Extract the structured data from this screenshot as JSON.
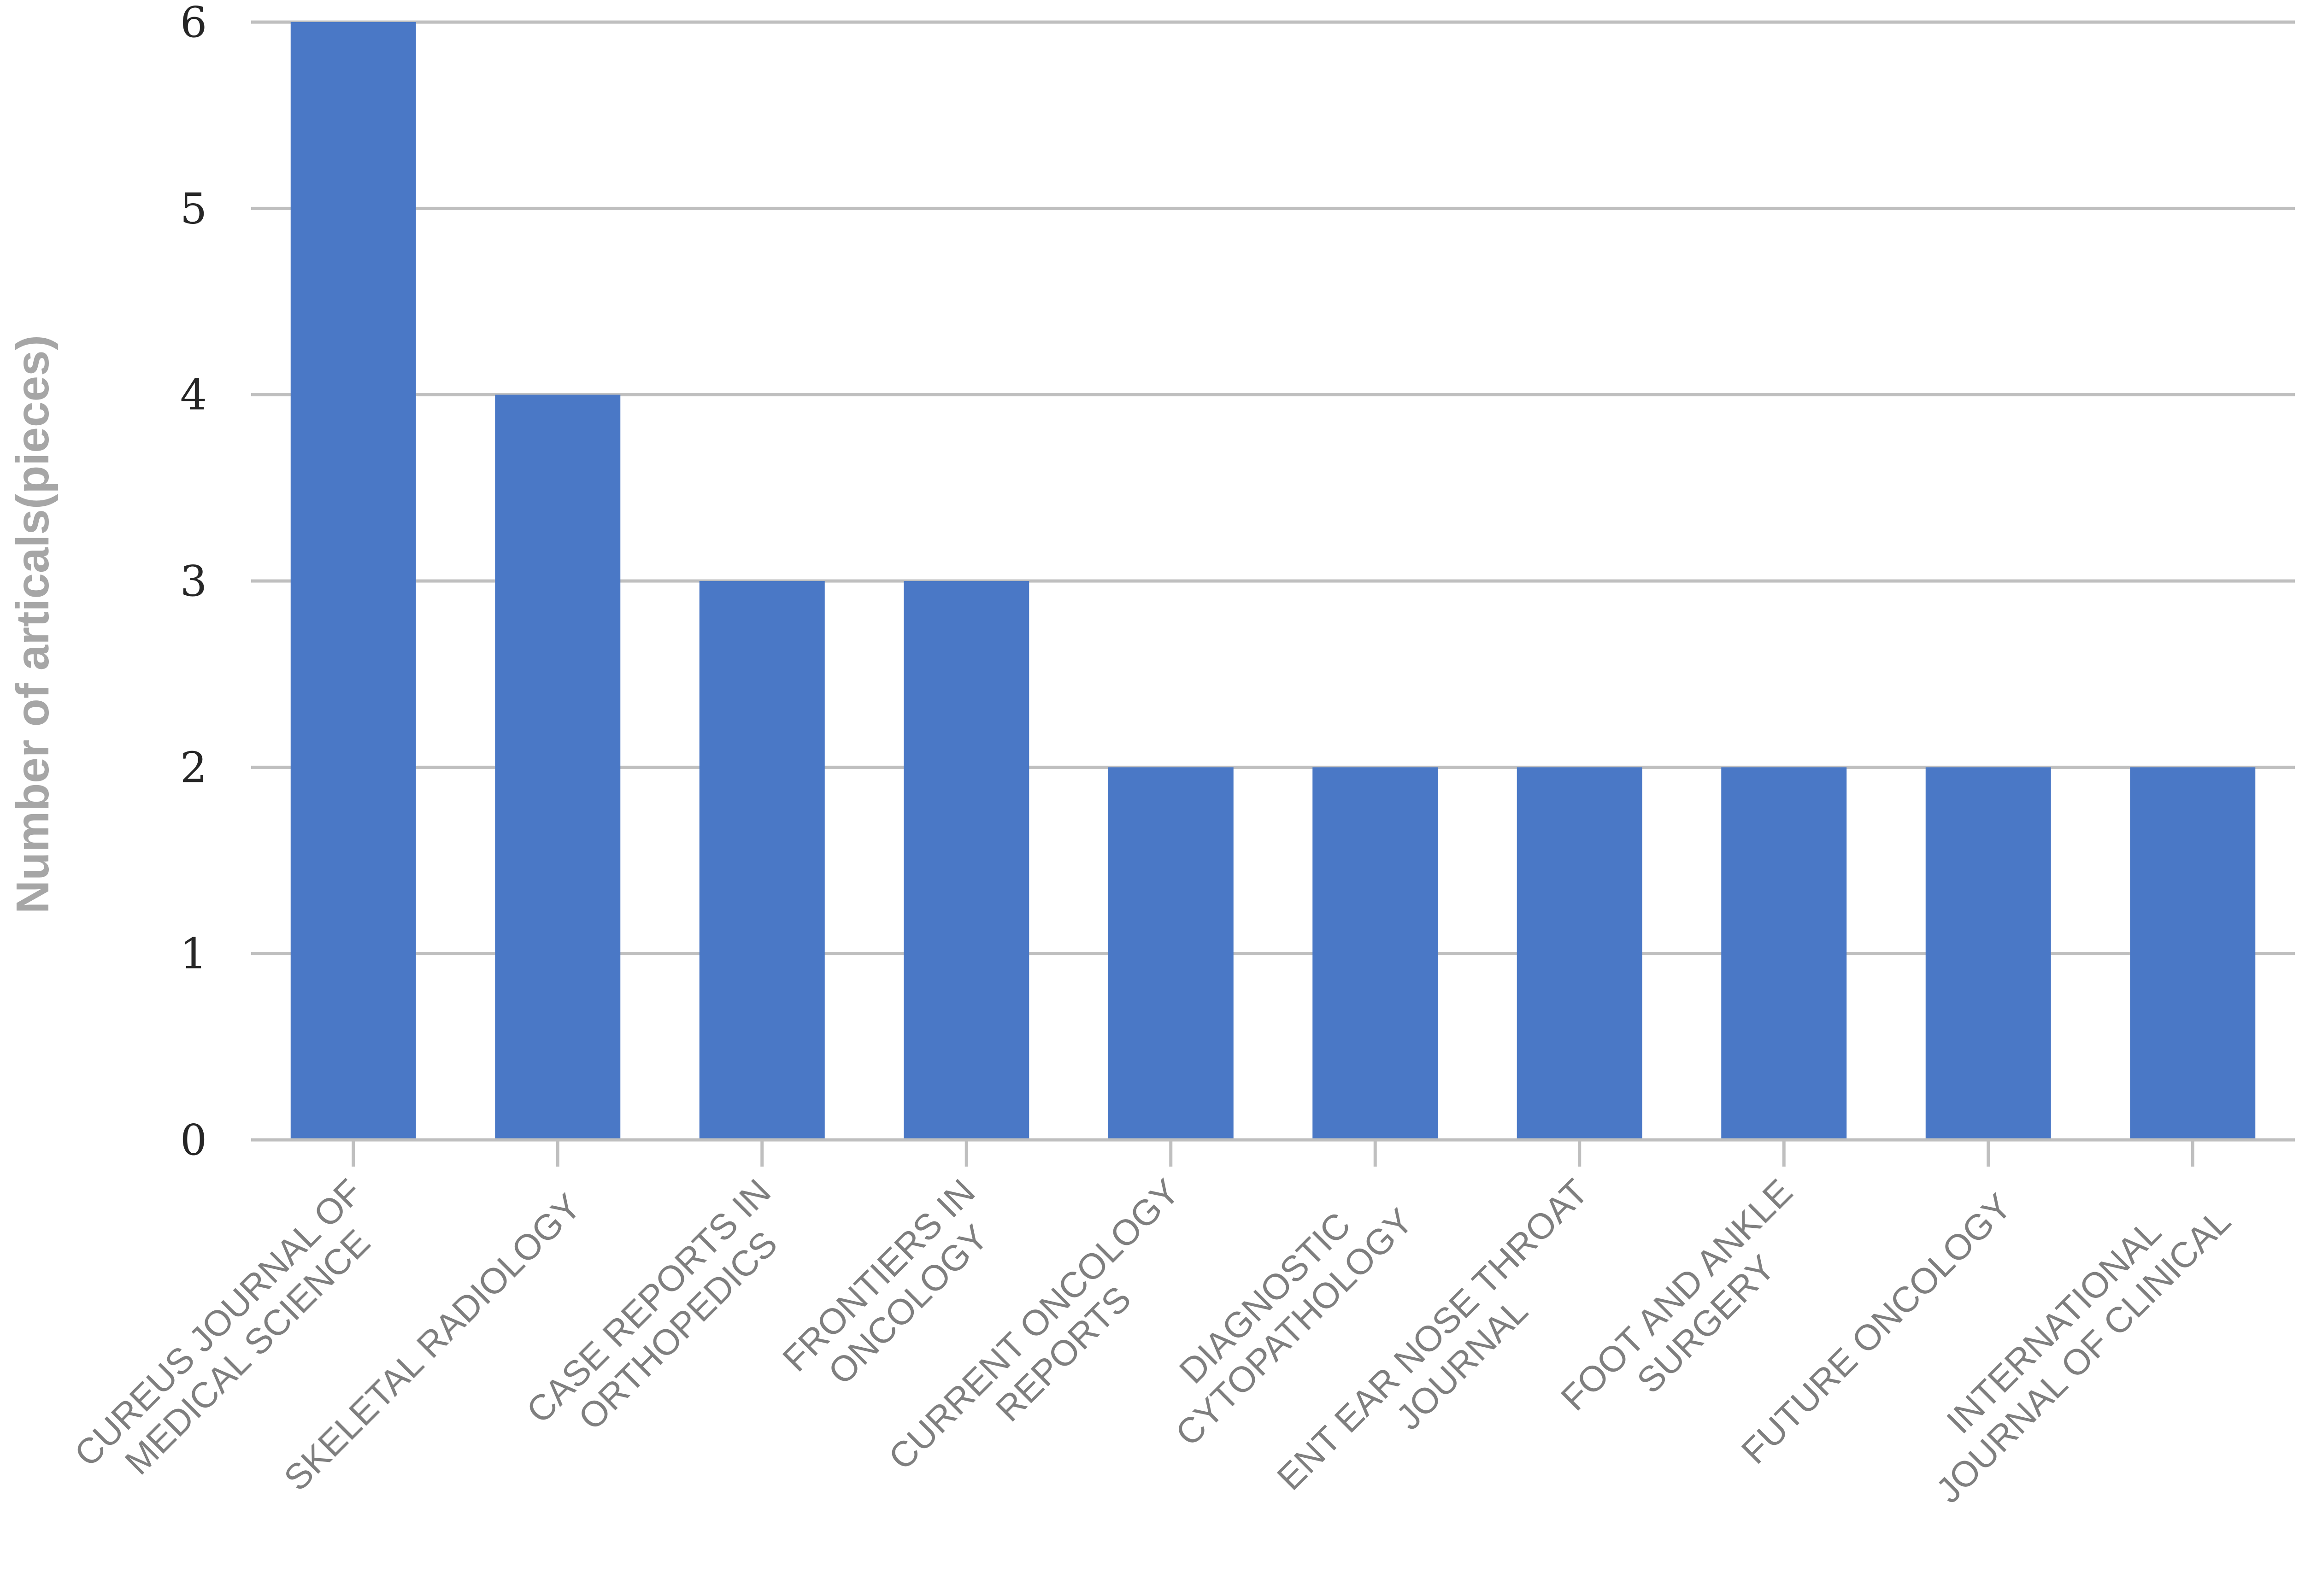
{
  "chart_data": {
    "type": "bar",
    "title": "",
    "xlabel": "",
    "ylabel": "Number of articals(pieces)",
    "ylim": [
      0,
      6
    ],
    "yticks": [
      0,
      1,
      2,
      3,
      4,
      5,
      6
    ],
    "grid": true,
    "legend": "none",
    "bar_color": "#4a78c6",
    "categories": [
      [
        "CUREUS JOURNAL OF",
        "MEDICAL SCIENCE"
      ],
      [
        "SKELETAL RADIOLOGY"
      ],
      [
        "CASE REPORTS IN",
        "ORTHOPEDICS"
      ],
      [
        "FRONTIERS IN",
        "ONCOLOGY"
      ],
      [
        "CURRENT ONCOLOGY",
        "REPORTS"
      ],
      [
        "DIAGNOSTIC",
        "CYTOPATHOLOGY"
      ],
      [
        "ENT EAR NOSE THROAT",
        "JOURNAL"
      ],
      [
        "FOOT AND ANKLE",
        "SURGERY"
      ],
      [
        "FUTURE ONCOLOGY"
      ],
      [
        "INTERNATIONAL",
        "JOURNAL OF CLINICAL"
      ]
    ],
    "values": [
      6,
      4,
      3,
      3,
      2,
      2,
      2,
      2,
      2,
      2
    ]
  }
}
